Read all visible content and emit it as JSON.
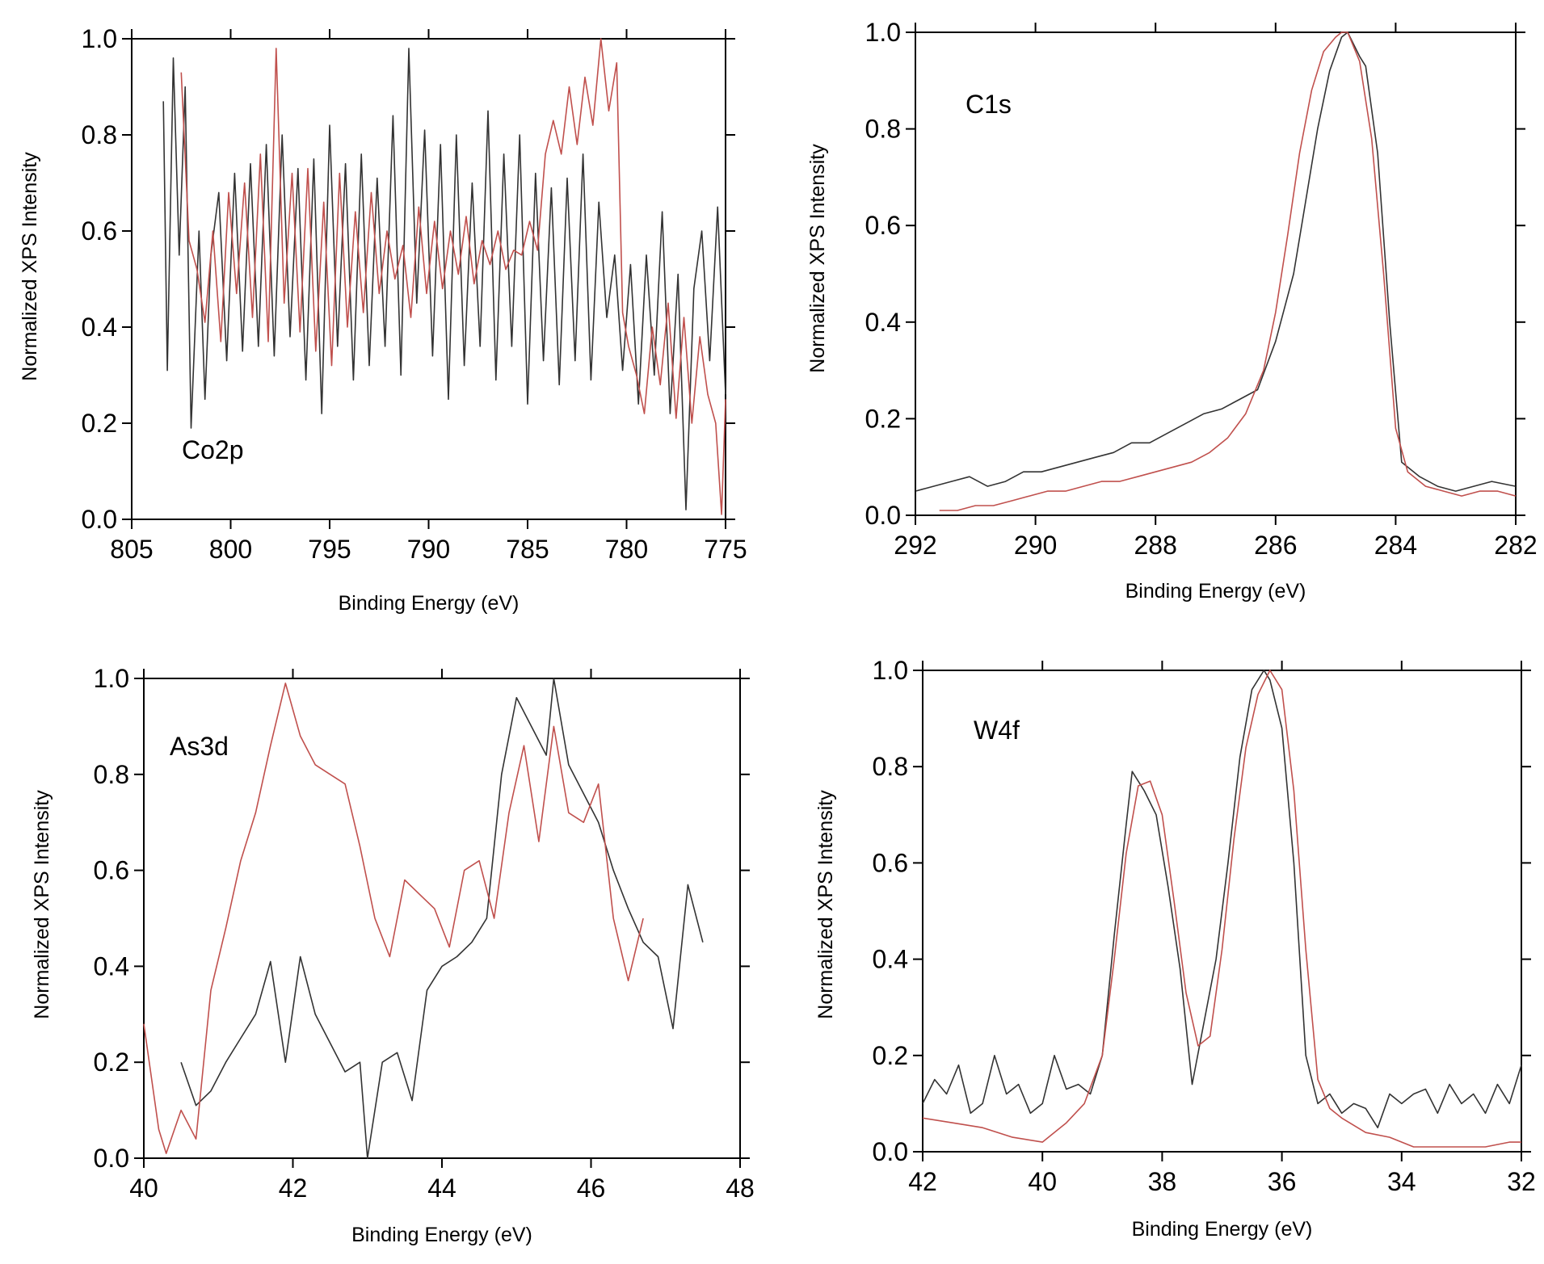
{
  "colors": {
    "sample_black": "#333333",
    "sample_red": "#c0504d",
    "axis": "#000000"
  },
  "chart_data": [
    {
      "type": "line",
      "panel_label": "Co2p",
      "xlabel": "Binding Energy (eV)",
      "ylabel": "Normalized XPS Intensity",
      "xlim": [
        805,
        775
      ],
      "ylim": [
        0,
        1
      ],
      "x_reversed": true,
      "grid": false,
      "xticks": [
        "805",
        "800",
        "795",
        "790",
        "785",
        "780",
        "775"
      ],
      "yticks": [
        "0.0",
        "0.2",
        "0.4",
        "0.6",
        "0.8",
        "1.0"
      ],
      "series": [
        {
          "color": "#333333",
          "x": [
            803.4,
            803.2,
            802.9,
            802.6,
            802.3,
            802.0,
            801.6,
            801.3,
            801.0,
            800.6,
            800.2,
            799.8,
            799.4,
            799.0,
            798.6,
            798.2,
            797.8,
            797.4,
            797.0,
            796.6,
            796.2,
            795.8,
            795.4,
            795.0,
            794.6,
            794.2,
            793.8,
            793.4,
            793.0,
            792.6,
            792.2,
            791.8,
            791.4,
            791.0,
            790.6,
            790.2,
            789.8,
            789.4,
            789.0,
            788.6,
            788.2,
            787.8,
            787.4,
            787.0,
            786.6,
            786.2,
            785.8,
            785.4,
            785.0,
            784.6,
            784.2,
            783.8,
            783.4,
            783.0,
            782.6,
            782.2,
            781.8,
            781.4,
            781.0,
            780.6,
            780.2,
            779.8,
            779.4,
            779.0,
            778.6,
            778.2,
            777.8,
            777.4,
            777.0,
            776.6,
            776.2,
            775.8,
            775.4,
            775.0
          ],
          "y": [
            0.87,
            0.31,
            0.96,
            0.55,
            0.9,
            0.19,
            0.6,
            0.25,
            0.55,
            0.68,
            0.33,
            0.72,
            0.35,
            0.74,
            0.36,
            0.78,
            0.34,
            0.8,
            0.38,
            0.73,
            0.29,
            0.75,
            0.22,
            0.82,
            0.36,
            0.74,
            0.29,
            0.76,
            0.32,
            0.71,
            0.36,
            0.84,
            0.3,
            0.98,
            0.45,
            0.81,
            0.34,
            0.78,
            0.25,
            0.8,
            0.32,
            0.7,
            0.36,
            0.85,
            0.29,
            0.76,
            0.36,
            0.8,
            0.24,
            0.72,
            0.33,
            0.69,
            0.28,
            0.71,
            0.33,
            0.76,
            0.29,
            0.66,
            0.42,
            0.55,
            0.31,
            0.53,
            0.24,
            0.55,
            0.3,
            0.64,
            0.22,
            0.51,
            0.02,
            0.48,
            0.6,
            0.33,
            0.65,
            0.26
          ]
        },
        {
          "color": "#c0504d",
          "x": [
            802.5,
            802.1,
            801.7,
            801.3,
            800.9,
            800.5,
            800.1,
            799.7,
            799.3,
            798.9,
            798.5,
            798.1,
            797.7,
            797.3,
            796.9,
            796.5,
            796.1,
            795.7,
            795.3,
            794.9,
            794.5,
            794.1,
            793.7,
            793.3,
            792.9,
            792.5,
            792.1,
            791.7,
            791.3,
            790.9,
            790.5,
            790.1,
            789.7,
            789.3,
            788.9,
            788.5,
            788.1,
            787.7,
            787.3,
            786.9,
            786.5,
            786.1,
            785.7,
            785.3,
            784.9,
            784.5,
            784.1,
            783.7,
            783.3,
            782.9,
            782.5,
            782.1,
            781.7,
            781.3,
            780.9,
            780.5,
            780.2,
            779.9,
            779.5,
            779.1,
            778.7,
            778.3,
            777.9,
            777.5,
            777.1,
            776.7,
            776.3,
            775.9,
            775.5,
            775.2,
            775.0
          ],
          "y": [
            0.93,
            0.58,
            0.52,
            0.41,
            0.6,
            0.37,
            0.68,
            0.47,
            0.7,
            0.42,
            0.76,
            0.37,
            0.98,
            0.45,
            0.72,
            0.39,
            0.73,
            0.35,
            0.66,
            0.32,
            0.72,
            0.4,
            0.64,
            0.43,
            0.68,
            0.47,
            0.6,
            0.5,
            0.57,
            0.42,
            0.65,
            0.47,
            0.62,
            0.48,
            0.6,
            0.51,
            0.63,
            0.49,
            0.58,
            0.53,
            0.6,
            0.52,
            0.56,
            0.55,
            0.62,
            0.56,
            0.76,
            0.83,
            0.76,
            0.9,
            0.78,
            0.92,
            0.82,
            1.0,
            0.85,
            0.95,
            0.43,
            0.36,
            0.3,
            0.22,
            0.4,
            0.28,
            0.45,
            0.21,
            0.42,
            0.2,
            0.38,
            0.26,
            0.2,
            0.01,
            0.25
          ]
        }
      ]
    },
    {
      "type": "line",
      "panel_label": "C1s",
      "xlabel": "Binding Energy (eV)",
      "ylabel": "Normalized XPS Intensity",
      "xlim": [
        292,
        282
      ],
      "ylim": [
        0,
        1
      ],
      "x_reversed": true,
      "grid": false,
      "xticks": [
        "292",
        "290",
        "288",
        "286",
        "284",
        "282"
      ],
      "yticks": [
        "0.0",
        "0.2",
        "0.4",
        "0.6",
        "0.8",
        "1.0"
      ],
      "series": [
        {
          "color": "#333333",
          "x": [
            292.0,
            291.7,
            291.4,
            291.1,
            290.8,
            290.5,
            290.2,
            289.9,
            289.6,
            289.3,
            289.0,
            288.7,
            288.4,
            288.1,
            287.8,
            287.5,
            287.2,
            286.9,
            286.6,
            286.3,
            286.0,
            285.7,
            285.5,
            285.3,
            285.1,
            284.9,
            284.8,
            284.6,
            284.5,
            284.3,
            284.1,
            283.9,
            283.6,
            283.3,
            283.0,
            282.7,
            282.4,
            282.0
          ],
          "y": [
            0.05,
            0.06,
            0.07,
            0.08,
            0.06,
            0.07,
            0.09,
            0.09,
            0.1,
            0.11,
            0.12,
            0.13,
            0.15,
            0.15,
            0.17,
            0.19,
            0.21,
            0.22,
            0.24,
            0.26,
            0.36,
            0.5,
            0.65,
            0.8,
            0.92,
            0.99,
            1.0,
            0.95,
            0.93,
            0.75,
            0.4,
            0.11,
            0.08,
            0.06,
            0.05,
            0.06,
            0.07,
            0.06
          ]
        },
        {
          "color": "#c0504d",
          "x": [
            291.6,
            291.3,
            291.0,
            290.7,
            290.4,
            290.1,
            289.8,
            289.5,
            289.2,
            288.9,
            288.6,
            288.3,
            288.0,
            287.7,
            287.4,
            287.1,
            286.8,
            286.5,
            286.2,
            286.0,
            285.8,
            285.6,
            285.4,
            285.2,
            285.0,
            284.9,
            284.8,
            284.6,
            284.4,
            284.2,
            284.0,
            283.8,
            283.5,
            283.2,
            282.9,
            282.6,
            282.3,
            282.0
          ],
          "y": [
            0.01,
            0.01,
            0.02,
            0.02,
            0.03,
            0.04,
            0.05,
            0.05,
            0.06,
            0.07,
            0.07,
            0.08,
            0.09,
            0.1,
            0.11,
            0.13,
            0.16,
            0.21,
            0.3,
            0.42,
            0.58,
            0.75,
            0.88,
            0.96,
            0.99,
            1.0,
            1.0,
            0.94,
            0.78,
            0.5,
            0.18,
            0.09,
            0.06,
            0.05,
            0.04,
            0.05,
            0.05,
            0.04
          ]
        }
      ]
    },
    {
      "type": "line",
      "panel_label": "As3d",
      "xlabel": "Binding Energy (eV)",
      "ylabel": "Normalized XPS Intensity",
      "xlim": [
        40,
        48
      ],
      "ylim": [
        0,
        1
      ],
      "x_reversed": false,
      "grid": false,
      "xticks": [
        "40",
        "42",
        "44",
        "46",
        "48"
      ],
      "yticks": [
        "0.0",
        "0.2",
        "0.4",
        "0.6",
        "0.8",
        "1.0"
      ],
      "series": [
        {
          "color": "#333333",
          "x": [
            40.5,
            40.7,
            40.9,
            41.1,
            41.3,
            41.5,
            41.7,
            41.9,
            42.1,
            42.3,
            42.5,
            42.7,
            42.9,
            43.0,
            43.2,
            43.4,
            43.6,
            43.8,
            44.0,
            44.2,
            44.4,
            44.6,
            44.8,
            45.0,
            45.2,
            45.4,
            45.5,
            45.7,
            45.9,
            46.1,
            46.3,
            46.5,
            46.7,
            46.9,
            47.1,
            47.3,
            47.5
          ],
          "y": [
            0.2,
            0.11,
            0.14,
            0.2,
            0.25,
            0.3,
            0.41,
            0.2,
            0.42,
            0.3,
            0.24,
            0.18,
            0.2,
            0.0,
            0.2,
            0.22,
            0.12,
            0.35,
            0.4,
            0.42,
            0.45,
            0.5,
            0.8,
            0.96,
            0.9,
            0.84,
            1.0,
            0.82,
            0.76,
            0.7,
            0.6,
            0.52,
            0.45,
            0.42,
            0.27,
            0.57,
            0.45
          ]
        },
        {
          "color": "#c0504d",
          "x": [
            40.0,
            40.2,
            40.3,
            40.5,
            40.7,
            40.9,
            41.1,
            41.3,
            41.5,
            41.7,
            41.9,
            42.1,
            42.3,
            42.5,
            42.7,
            42.9,
            43.1,
            43.3,
            43.5,
            43.7,
            43.9,
            44.1,
            44.3,
            44.5,
            44.7,
            44.9,
            45.1,
            45.3,
            45.5,
            45.7,
            45.9,
            46.1,
            46.3,
            46.5,
            46.7
          ],
          "y": [
            0.28,
            0.06,
            0.01,
            0.1,
            0.04,
            0.35,
            0.48,
            0.62,
            0.72,
            0.86,
            0.99,
            0.88,
            0.82,
            0.8,
            0.78,
            0.65,
            0.5,
            0.42,
            0.58,
            0.55,
            0.52,
            0.44,
            0.6,
            0.62,
            0.5,
            0.72,
            0.86,
            0.66,
            0.9,
            0.72,
            0.7,
            0.78,
            0.5,
            0.37,
            0.5
          ]
        }
      ]
    },
    {
      "type": "line",
      "panel_label": "W4f",
      "xlabel": "Binding Energy (eV)",
      "ylabel": "Normalized XPS Intensity",
      "xlim": [
        42,
        32
      ],
      "ylim": [
        0,
        1
      ],
      "x_reversed": true,
      "grid": false,
      "xticks": [
        "42",
        "40",
        "38",
        "36",
        "34",
        "32"
      ],
      "yticks": [
        "0.0",
        "0.2",
        "0.4",
        "0.6",
        "0.8",
        "1.0"
      ],
      "series": [
        {
          "color": "#333333",
          "x": [
            42.0,
            41.8,
            41.6,
            41.4,
            41.2,
            41.0,
            40.8,
            40.6,
            40.4,
            40.2,
            40.0,
            39.8,
            39.6,
            39.4,
            39.2,
            39.0,
            38.8,
            38.6,
            38.5,
            38.3,
            38.1,
            37.9,
            37.7,
            37.5,
            37.3,
            37.1,
            36.9,
            36.7,
            36.5,
            36.3,
            36.2,
            36.0,
            35.8,
            35.6,
            35.4,
            35.2,
            35.0,
            34.8,
            34.6,
            34.4,
            34.2,
            34.0,
            33.8,
            33.6,
            33.4,
            33.2,
            33.0,
            32.8,
            32.6,
            32.4,
            32.2,
            32.0
          ],
          "y": [
            0.1,
            0.15,
            0.12,
            0.18,
            0.08,
            0.1,
            0.2,
            0.12,
            0.14,
            0.08,
            0.1,
            0.2,
            0.13,
            0.14,
            0.12,
            0.2,
            0.45,
            0.68,
            0.79,
            0.75,
            0.7,
            0.55,
            0.38,
            0.14,
            0.27,
            0.4,
            0.6,
            0.82,
            0.96,
            1.0,
            0.98,
            0.88,
            0.6,
            0.2,
            0.1,
            0.12,
            0.08,
            0.1,
            0.09,
            0.05,
            0.12,
            0.1,
            0.12,
            0.13,
            0.08,
            0.14,
            0.1,
            0.12,
            0.08,
            0.14,
            0.1,
            0.18
          ]
        },
        {
          "color": "#c0504d",
          "x": [
            42.0,
            41.5,
            41.0,
            40.5,
            40.0,
            39.6,
            39.3,
            39.0,
            38.8,
            38.6,
            38.4,
            38.2,
            38.0,
            37.8,
            37.6,
            37.4,
            37.2,
            37.0,
            36.8,
            36.6,
            36.4,
            36.2,
            36.0,
            35.8,
            35.6,
            35.4,
            35.2,
            35.0,
            34.6,
            34.2,
            33.8,
            33.4,
            33.0,
            32.6,
            32.2,
            32.0
          ],
          "y": [
            0.07,
            0.06,
            0.05,
            0.03,
            0.02,
            0.06,
            0.1,
            0.2,
            0.4,
            0.62,
            0.76,
            0.77,
            0.7,
            0.52,
            0.33,
            0.22,
            0.24,
            0.42,
            0.65,
            0.84,
            0.95,
            1.0,
            0.96,
            0.75,
            0.42,
            0.15,
            0.09,
            0.07,
            0.04,
            0.03,
            0.01,
            0.01,
            0.01,
            0.01,
            0.02,
            0.02
          ]
        }
      ]
    }
  ]
}
